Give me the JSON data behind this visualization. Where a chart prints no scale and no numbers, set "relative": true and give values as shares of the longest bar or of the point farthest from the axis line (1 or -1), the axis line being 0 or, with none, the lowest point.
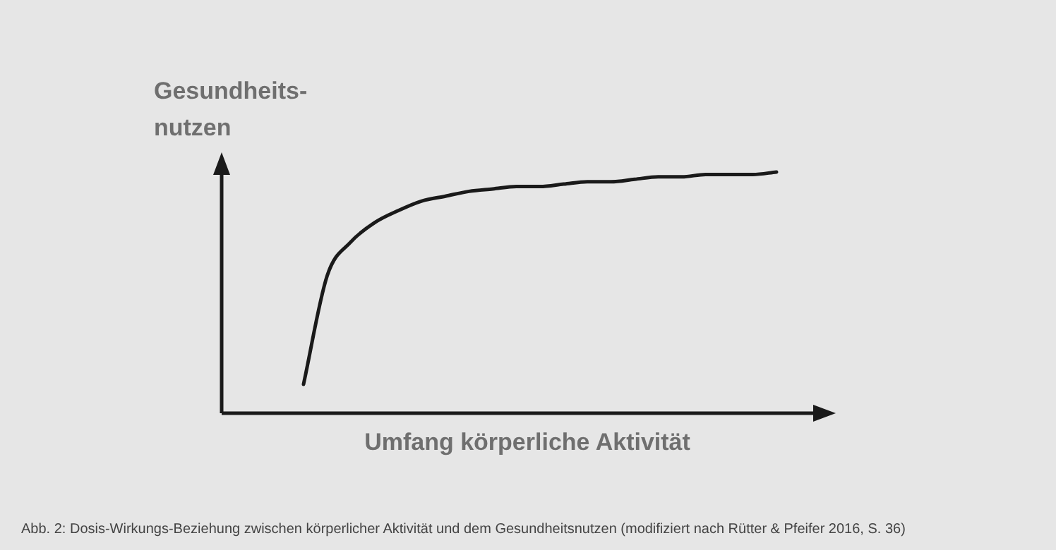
{
  "chart_data": {
    "type": "line",
    "ylabel": "Gesundheits-nutzen",
    "xlabel": "Umfang körperliche Aktivität",
    "annotations": [
      "Abb. 2: Dosis-Wirkungs-Beziehung zwischen körperlicher Aktivität und dem Gesundheitsnutzen (modifiziert nach Rütter & Pfeifer 2016, S. 36)"
    ],
    "relative": true,
    "marker": "none",
    "color": "#1a1a1a",
    "categories": [
      null,
      null,
      null,
      null,
      null,
      null,
      null,
      null,
      null,
      null,
      null,
      null,
      null,
      null,
      null,
      null,
      null,
      null,
      null,
      null,
      null
    ],
    "values": [
      0.12,
      0.57,
      0.71,
      0.79,
      0.84,
      0.88,
      0.9,
      0.92,
      0.93,
      0.94,
      0.94,
      0.95,
      0.96,
      0.96,
      0.97,
      0.98,
      0.98,
      0.99,
      0.99,
      0.99,
      1
    ]
  }
}
